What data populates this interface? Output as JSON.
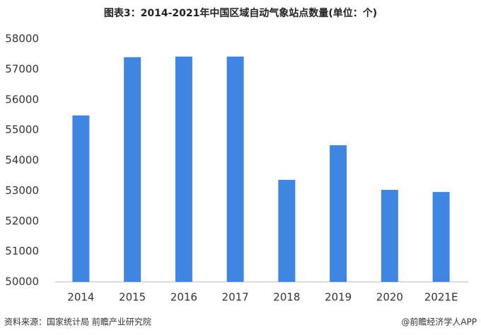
{
  "chart_data": {
    "type": "bar",
    "title": "图表3：2014-2021年中国区域自动气象站点数量(单位：个)",
    "categories": [
      "2014",
      "2015",
      "2016",
      "2017",
      "2018",
      "2019",
      "2020",
      "2021E"
    ],
    "values": [
      55480,
      57400,
      57420,
      57420,
      53360,
      54500,
      53030,
      52960
    ],
    "color": "#3f86e3",
    "ylim": [
      50000,
      58000
    ],
    "yticks": [
      50000,
      51000,
      52000,
      53000,
      54000,
      55000,
      56000,
      57000,
      58000
    ],
    "grid": false,
    "source": "资料来源：国家统计局 前瞻产业研究院",
    "credit": "@前瞻经济学人APP"
  }
}
